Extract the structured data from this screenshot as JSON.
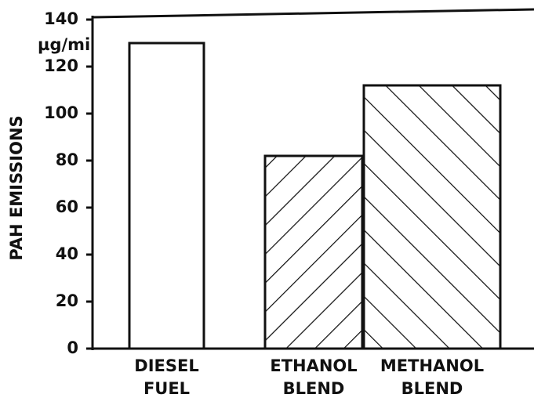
{
  "chart_data": {
    "type": "bar",
    "y_label": "PAH EMISSIONS",
    "unit_label": "µg/mi",
    "categories": [
      [
        "DIESEL",
        "FUEL"
      ],
      [
        "ETHANOL",
        "BLEND"
      ],
      [
        "METHANOL",
        "BLEND"
      ]
    ],
    "values": [
      130,
      82,
      112
    ],
    "hatch": [
      "none",
      "/",
      "\\"
    ],
    "color": "#111111",
    "ylim": [
      0,
      140
    ],
    "yticks": [
      0,
      20,
      40,
      60,
      80,
      100,
      120,
      140
    ],
    "grid": false
  }
}
